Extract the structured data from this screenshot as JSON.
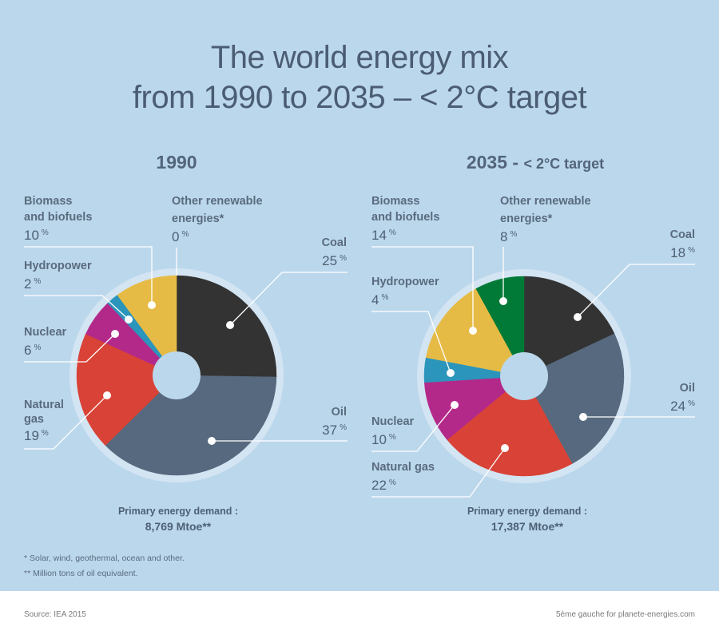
{
  "title": {
    "line1": "The world energy mix",
    "line2": "from 1990 to 2035 – < 2°C target"
  },
  "colors": {
    "background": "#bbd7ec",
    "halo": "#d3e4f2",
    "Coal": "#333333",
    "Oil": "#56697e",
    "Natural gas": "#d94236",
    "Nuclear": "#b3298a",
    "Hydropower": "#2b95bb",
    "Biomass and biofuels": "#e6bb45",
    "Other renewable energies": "#007a36"
  },
  "chart_data": [
    {
      "type": "pie",
      "title": "1990",
      "categories": [
        "Coal",
        "Oil",
        "Natural gas",
        "Nuclear",
        "Hydropower",
        "Biomass and biofuels",
        "Other renewable energies"
      ],
      "values": [
        25,
        37,
        19,
        6,
        2,
        10,
        0
      ],
      "unit": "%",
      "order": "clockwise from top",
      "donut": true,
      "footer_label": "Primary energy demand :",
      "footer_value": "8,769 Mtoe**"
    },
    {
      "type": "pie",
      "title": "2035 - < 2°C target",
      "title_main": "2035 -",
      "title_small": "< 2°C target",
      "categories": [
        "Coal",
        "Oil",
        "Natural gas",
        "Nuclear",
        "Hydropower",
        "Biomass and biofuels",
        "Other renewable energies"
      ],
      "values": [
        18,
        24,
        22,
        10,
        4,
        14,
        8
      ],
      "unit": "%",
      "order": "clockwise from top",
      "donut": true,
      "footer_label": "Primary energy demand :",
      "footer_value": "17,387 Mtoe**"
    }
  ],
  "labels1990": {
    "biomass": {
      "l1": "Biomass",
      "l2": "and biofuels",
      "v": "10"
    },
    "other": {
      "l1": "Other renewable",
      "l2": "energies*",
      "v": "0"
    },
    "coal": {
      "l1": "Coal",
      "v": "25"
    },
    "hydro": {
      "l1": "Hydropower",
      "v": "2"
    },
    "nuclear": {
      "l1": "Nuclear",
      "v": "6"
    },
    "gas": {
      "l1": "Natural",
      "l2": "gas",
      "v": "19"
    },
    "oil": {
      "l1": "Oil",
      "v": "37"
    }
  },
  "labels2035": {
    "biomass": {
      "l1": "Biomass",
      "l2": "and biofuels",
      "v": "14"
    },
    "other": {
      "l1": "Other renewable",
      "l2": "energies*",
      "v": "8"
    },
    "coal": {
      "l1": "Coal",
      "v": "18"
    },
    "hydro": {
      "l1": "Hydropower",
      "v": "4"
    },
    "nuclear": {
      "l1": "Nuclear",
      "v": "10"
    },
    "gas": {
      "l1": "Natural gas",
      "v": "22"
    },
    "oil": {
      "l1": "Oil",
      "v": "24"
    }
  },
  "percent_sign": "%",
  "notes": {
    "n1": "* Solar, wind, geothermal, ocean and other.",
    "n2": "** Million tons of oil equivalent."
  },
  "footer": {
    "source": "Source: IEA 2015",
    "credit": "5ème gauche for planete-energies.com"
  }
}
